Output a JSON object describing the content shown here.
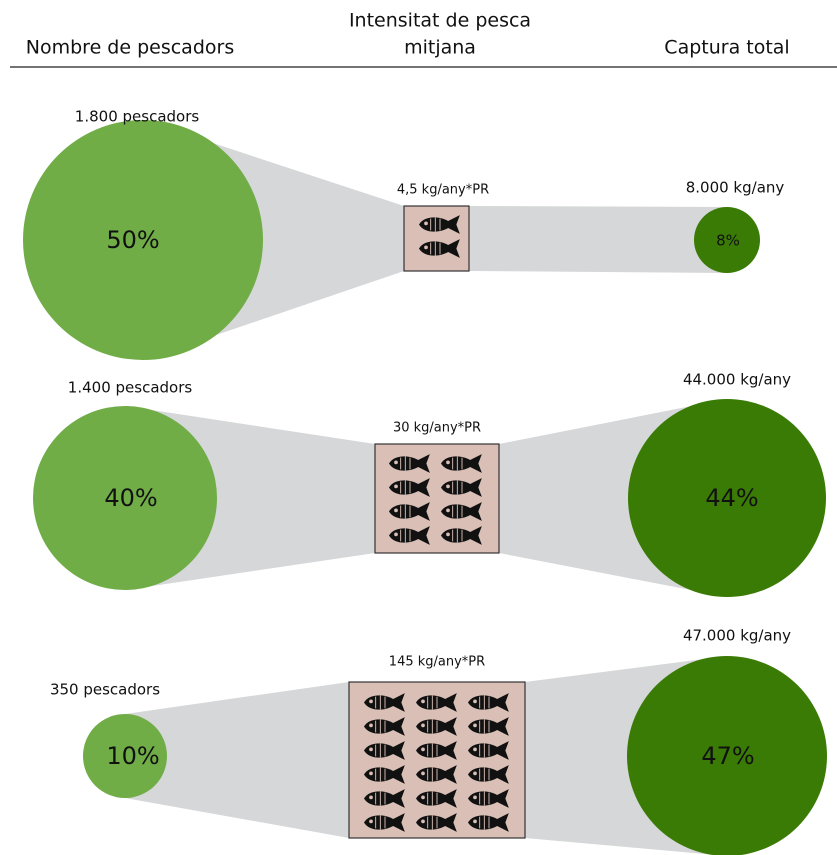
{
  "header": {
    "left": "Nombre de pescadors",
    "middle": [
      "Intensitat de pesca",
      "mitjana"
    ],
    "right": "Captura total"
  },
  "rows": [
    {
      "fishers": "1.800 pescadors",
      "share": "50%",
      "intensity": "4,5 kg/any*PR",
      "catch": "8.000 kg/any",
      "catch_share": "8%"
    },
    {
      "fishers": "1.400 pescadors",
      "share": "40%",
      "intensity": "30 kg/any*PR",
      "catch": "44.000 kg/any",
      "catch_share": "44%"
    },
    {
      "fishers": "350 pescadors",
      "share": "10%",
      "intensity": "145 kg/any*PR",
      "catch": "47.000 kg/any",
      "catch_share": "47%"
    }
  ]
}
